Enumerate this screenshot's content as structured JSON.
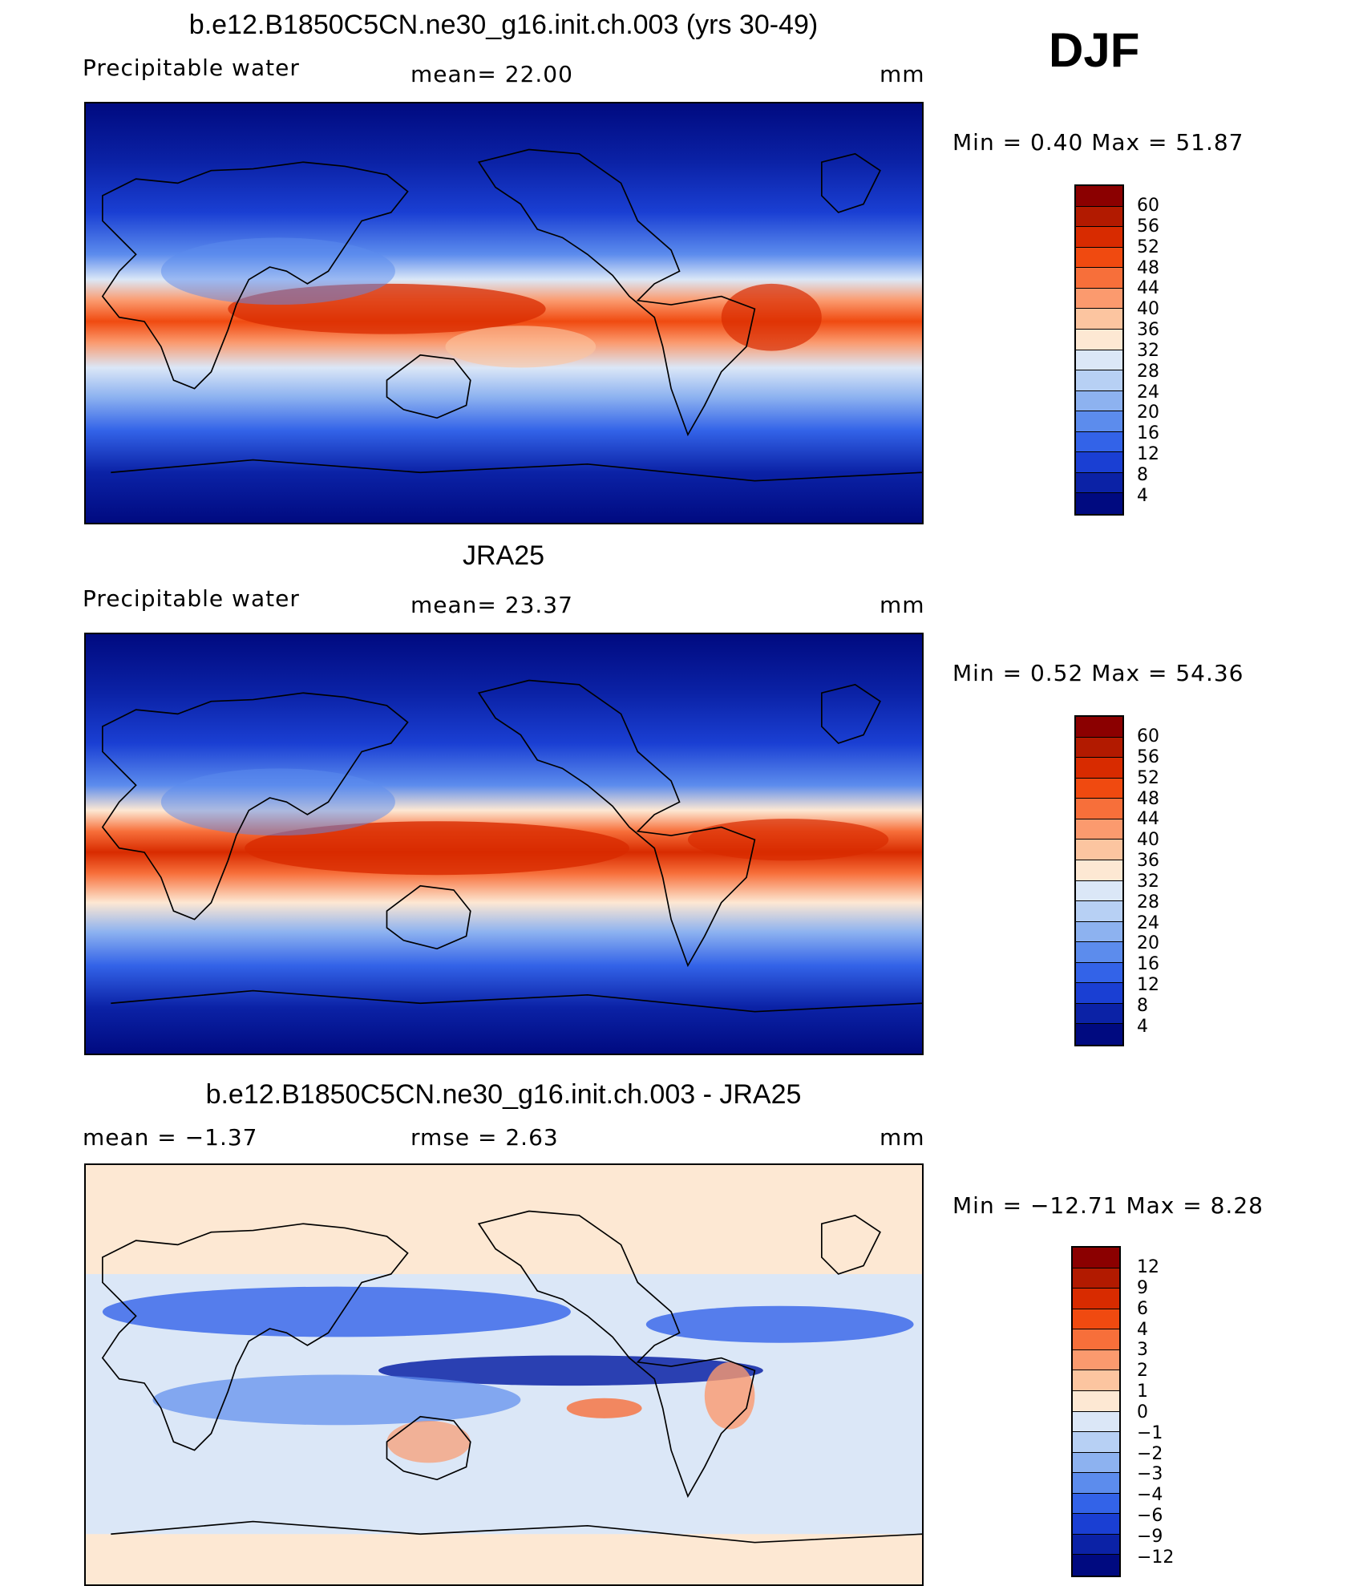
{
  "figure": {
    "season_label": "DJF"
  },
  "panels": [
    {
      "title": "b.e12.B1850C5CN.ne30_g16.init.ch.003 (yrs 30-49)",
      "variable": "Precipitable  water",
      "stat_text": "mean=   22.00",
      "units": "mm",
      "minmax_text": "Min  =     0.40  Max  =    51.87",
      "colorbar_labels": [
        "60",
        "56",
        "52",
        "48",
        "44",
        "40",
        "36",
        "32",
        "28",
        "24",
        "20",
        "16",
        "12",
        "8",
        "4"
      ],
      "colorbar_colors": [
        "#8b0000",
        "#b21a00",
        "#d82b00",
        "#f04a10",
        "#f76f3a",
        "#fb9a6e",
        "#fcc5a0",
        "#fde8d3",
        "#dbe7f7",
        "#b7d0f4",
        "#8db2f0",
        "#5c8ced",
        "#3363e8",
        "#1a3fd3",
        "#0b22a6",
        "#000a80"
      ]
    },
    {
      "title": "JRA25",
      "variable": "Precipitable  water",
      "stat_text": "mean=   23.37",
      "units": "mm",
      "minmax_text": "Min  =     0.52  Max  =    54.36",
      "colorbar_labels": [
        "60",
        "56",
        "52",
        "48",
        "44",
        "40",
        "36",
        "32",
        "28",
        "24",
        "20",
        "16",
        "12",
        "8",
        "4"
      ],
      "colorbar_colors": [
        "#8b0000",
        "#b21a00",
        "#d82b00",
        "#f04a10",
        "#f76f3a",
        "#fb9a6e",
        "#fcc5a0",
        "#fde8d3",
        "#dbe7f7",
        "#b7d0f4",
        "#8db2f0",
        "#5c8ced",
        "#3363e8",
        "#1a3fd3",
        "#0b22a6",
        "#000a80"
      ]
    },
    {
      "title": "b.e12.B1850C5CN.ne30_g16.init.ch.003 - JRA25",
      "variable": "mean  =    −1.37",
      "stat_text": "rmse  =     2.63",
      "units": "mm",
      "minmax_text": "Min  = −12.71  Max  =     8.28",
      "colorbar_labels": [
        "12",
        "9",
        "6",
        "4",
        "3",
        "2",
        "1",
        "0",
        "−1",
        "−2",
        "−3",
        "−4",
        "−6",
        "−9",
        "−12"
      ],
      "colorbar_colors": [
        "#8b0000",
        "#b21a00",
        "#d82b00",
        "#f04a10",
        "#f76f3a",
        "#fb9a6e",
        "#fcc5a0",
        "#fde8d3",
        "#dbe7f7",
        "#b7d0f4",
        "#8db2f0",
        "#5c8ced",
        "#3363e8",
        "#1a3fd3",
        "#0b22a6",
        "#000a80"
      ]
    }
  ]
}
